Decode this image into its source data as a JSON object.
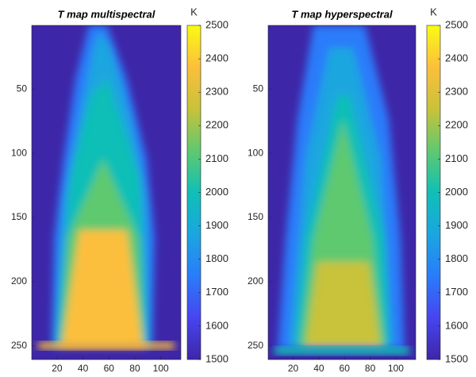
{
  "chart_data": [
    {
      "type": "heatmap",
      "title": "T map multispectral",
      "xlim": [
        0.5,
        115.5
      ],
      "xticks": [
        20,
        40,
        60,
        80,
        100
      ],
      "ylim": [
        0.5,
        260.5
      ],
      "yticks": [
        50,
        100,
        150,
        200,
        250
      ],
      "colorbar": {
        "label": "K",
        "lim": [
          1500,
          2500
        ],
        "ticks": [
          1500,
          1600,
          1700,
          1800,
          1900,
          2000,
          2100,
          2200,
          2300,
          2400,
          2500
        ]
      },
      "colors": [
        "#3e26a8",
        "#4745f0",
        "#2a7cfa",
        "#1aa6e0",
        "#10bfb6",
        "#5fc96f",
        "#c9c23a",
        "#fcbf3c",
        "#f9fb14"
      ]
    },
    {
      "type": "heatmap",
      "title": "T map hyperspectral",
      "xlim": [
        0.5,
        115.5
      ],
      "xticks": [
        20,
        40,
        60,
        80,
        100
      ],
      "ylim": [
        0.5,
        260.5
      ],
      "yticks": [
        50,
        100,
        150,
        200,
        250
      ],
      "colorbar": {
        "label": "K",
        "lim": [
          1500,
          2500
        ],
        "ticks": [
          1500,
          1600,
          1700,
          1800,
          1900,
          2000,
          2100,
          2200,
          2300,
          2400,
          2500
        ]
      },
      "colors": [
        "#3e26a8",
        "#4745f0",
        "#2a7cfa",
        "#1aa6e0",
        "#10bfb6",
        "#5fc96f",
        "#c9c23a",
        "#fcbf3c",
        "#f9fb14"
      ]
    }
  ]
}
